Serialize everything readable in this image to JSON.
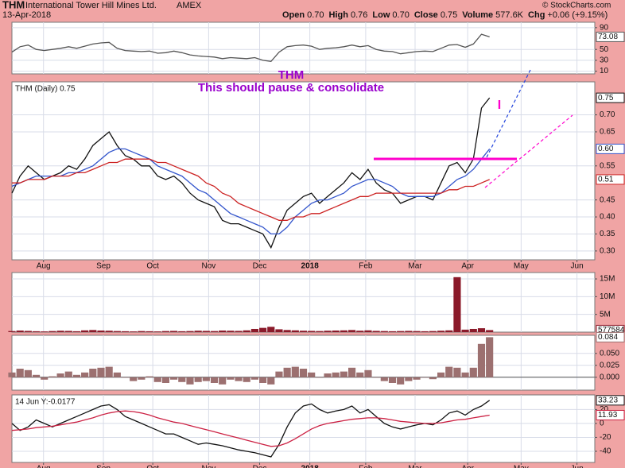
{
  "header": {
    "symbol": "THM",
    "name": "International Tower Hill Mines Ltd.",
    "exchange": "AMEX",
    "date": "13-Apr-2018",
    "quote": [
      [
        "Open",
        "0.70"
      ],
      [
        "High",
        "0.76"
      ],
      [
        "Low",
        "0.70"
      ],
      [
        "Close",
        "0.75"
      ],
      [
        "Volume",
        "577.6K"
      ],
      [
        "Chg",
        "+0.06 (+9.15%)"
      ]
    ],
    "source": "© StockCharts.com"
  },
  "chart_data": [
    {
      "type": "line",
      "xlim": [
        0,
        72
      ],
      "ylim": [
        5,
        100
      ],
      "yticks": [
        10,
        30,
        50,
        90
      ],
      "grid": true,
      "series": [
        {
          "name": "RSI",
          "color": "#555555",
          "last_label": "73.08",
          "values": [
            45,
            55,
            58,
            50,
            48,
            50,
            52,
            55,
            52,
            56,
            60,
            62,
            63,
            52,
            48,
            47,
            46,
            47,
            43,
            44,
            47,
            44,
            40,
            38,
            37,
            36,
            33,
            35,
            34,
            33,
            35,
            30,
            28,
            45,
            55,
            57,
            58,
            56,
            50,
            52,
            53,
            55,
            58,
            55,
            57,
            50,
            47,
            46,
            42,
            44,
            46,
            47,
            46,
            52,
            58,
            59,
            54,
            60,
            78,
            73.08
          ]
        }
      ]
    },
    {
      "type": "line",
      "label": "THM (Daily) 0.75",
      "xlim": [
        0,
        72
      ],
      "ylim": [
        0.274,
        0.797
      ],
      "grid": true,
      "annotations": [
        "THM",
        "This should pause & consolidate",
        "I"
      ],
      "xticks": [
        {
          "value": 3.9,
          "label": "Aug"
        },
        {
          "value": 11.3,
          "label": "Sep"
        },
        {
          "value": 17.4,
          "label": "Oct"
        },
        {
          "value": 24.3,
          "label": "Nov"
        },
        {
          "value": 30.6,
          "label": "Dec"
        },
        {
          "value": 36.8,
          "label": "2018"
        },
        {
          "value": 43.7,
          "label": "Feb"
        },
        {
          "value": 49.8,
          "label": "Mar"
        },
        {
          "value": 56.3,
          "label": "Apr"
        },
        {
          "value": 62.9,
          "label": "May"
        },
        {
          "value": 69.8,
          "label": "Jun"
        }
      ],
      "yticks": [
        {
          "value": 0.3,
          "label": "0.30"
        },
        {
          "value": 0.35,
          "label": "0.35"
        },
        {
          "value": 0.4,
          "label": "0.40"
        },
        {
          "value": 0.45,
          "label": "0.45"
        },
        {
          "value": 0.55,
          "label": "0.55"
        },
        {
          "value": 0.65,
          "label": "0.65"
        },
        {
          "value": 0.7,
          "label": "0.70"
        }
      ],
      "series": [
        {
          "name": "THM",
          "color": "#111111",
          "last_label": "0.75",
          "values": [
            0.47,
            0.52,
            0.55,
            0.53,
            0.51,
            0.52,
            0.53,
            0.55,
            0.54,
            0.57,
            0.61,
            0.63,
            0.65,
            0.61,
            0.58,
            0.57,
            0.55,
            0.55,
            0.52,
            0.51,
            0.52,
            0.5,
            0.47,
            0.45,
            0.44,
            0.43,
            0.39,
            0.38,
            0.38,
            0.37,
            0.36,
            0.35,
            0.31,
            0.37,
            0.42,
            0.44,
            0.46,
            0.47,
            0.44,
            0.46,
            0.48,
            0.5,
            0.53,
            0.51,
            0.54,
            0.5,
            0.48,
            0.47,
            0.44,
            0.45,
            0.46,
            0.46,
            0.45,
            0.5,
            0.55,
            0.56,
            0.53,
            0.57,
            0.72,
            0.75
          ]
        },
        {
          "name": "MA20",
          "color": "#3355cc",
          "last_label": "0.60",
          "values": [
            0.49,
            0.5,
            0.51,
            0.52,
            0.52,
            0.52,
            0.52,
            0.53,
            0.53,
            0.54,
            0.55,
            0.57,
            0.59,
            0.6,
            0.6,
            0.59,
            0.58,
            0.57,
            0.55,
            0.54,
            0.53,
            0.52,
            0.5,
            0.48,
            0.47,
            0.45,
            0.43,
            0.41,
            0.4,
            0.39,
            0.38,
            0.37,
            0.35,
            0.35,
            0.37,
            0.4,
            0.42,
            0.44,
            0.45,
            0.45,
            0.46,
            0.47,
            0.49,
            0.5,
            0.51,
            0.51,
            0.5,
            0.49,
            0.47,
            0.46,
            0.46,
            0.46,
            0.46,
            0.47,
            0.49,
            0.51,
            0.52,
            0.54,
            0.57,
            0.6
          ]
        },
        {
          "name": "MA50",
          "color": "#cc2222",
          "last_label": "0.51",
          "values": [
            0.5,
            0.5,
            0.51,
            0.51,
            0.51,
            0.52,
            0.52,
            0.52,
            0.53,
            0.53,
            0.54,
            0.55,
            0.56,
            0.56,
            0.57,
            0.57,
            0.57,
            0.57,
            0.56,
            0.56,
            0.55,
            0.54,
            0.53,
            0.52,
            0.5,
            0.49,
            0.47,
            0.46,
            0.44,
            0.43,
            0.42,
            0.41,
            0.4,
            0.39,
            0.39,
            0.4,
            0.4,
            0.41,
            0.41,
            0.42,
            0.43,
            0.44,
            0.45,
            0.46,
            0.46,
            0.47,
            0.47,
            0.47,
            0.47,
            0.47,
            0.47,
            0.47,
            0.47,
            0.47,
            0.48,
            0.48,
            0.49,
            0.49,
            0.5,
            0.51
          ]
        }
      ]
    },
    {
      "type": "bar",
      "xlim": [
        0,
        72
      ],
      "ylim": [
        0,
        16800000
      ],
      "grid": true,
      "yticks": [
        {
          "value": 5000000,
          "label": "5M"
        },
        {
          "value": 10000000,
          "label": "10M"
        },
        {
          "value": 15000000,
          "label": "15M"
        }
      ],
      "series": [
        {
          "name": "Volume",
          "color": "#8b1a2a",
          "last_label": "577584",
          "values": [
            300000,
            450000,
            350000,
            250000,
            200000,
            300000,
            400000,
            350000,
            250000,
            500000,
            600000,
            450000,
            400000,
            300000,
            250000,
            200000,
            300000,
            250000,
            200000,
            300000,
            350000,
            250000,
            300000,
            400000,
            350000,
            300000,
            450000,
            400000,
            350000,
            500000,
            900000,
            1200000,
            1500000,
            800000,
            600000,
            500000,
            400000,
            350000,
            300000,
            400000,
            450000,
            500000,
            600000,
            400000,
            500000,
            350000,
            300000,
            250000,
            300000,
            350000,
            300000,
            250000,
            300000,
            400000,
            500000,
            15500000,
            700000,
            900000,
            1100000,
            577584
          ]
        }
      ]
    },
    {
      "type": "bar",
      "xlim": [
        0,
        72
      ],
      "ylim": [
        -0.027,
        0.088
      ],
      "grid": true,
      "yticks": [
        {
          "value": 0,
          "label": "0.000"
        },
        {
          "value": 0.025,
          "label": "0.025"
        },
        {
          "value": 0.05,
          "label": "0.050"
        }
      ],
      "series": [
        {
          "name": "Histogram",
          "color": "#9c7070",
          "last_label": "0.084",
          "values": [
            0.01,
            0.018,
            0.015,
            0.005,
            -0.005,
            0.002,
            0.008,
            0.012,
            0.005,
            0.01,
            0.018,
            0.02,
            0.022,
            0.01,
            0,
            -0.008,
            -0.005,
            0.002,
            -0.01,
            -0.012,
            -0.005,
            -0.01,
            -0.015,
            -0.01,
            -0.008,
            -0.012,
            -0.015,
            -0.005,
            -0.008,
            -0.01,
            -0.005,
            -0.012,
            -0.015,
            0.012,
            0.02,
            0.022,
            0.018,
            0.01,
            0,
            0.008,
            0.01,
            0.012,
            0.02,
            0.01,
            0.015,
            0,
            -0.008,
            -0.012,
            -0.015,
            -0.008,
            -0.005,
            0,
            -0.004,
            0.01,
            0.022,
            0.02,
            0.01,
            0.02,
            0.07,
            0.084
          ]
        }
      ]
    },
    {
      "type": "line",
      "label": "14 Jun Y:-0.0177",
      "xlim": [
        0,
        72
      ],
      "ylim": [
        -56,
        41
      ],
      "grid": true,
      "xticks": [
        {
          "value": 3.9,
          "label": "Aug"
        },
        {
          "value": 11.3,
          "label": "Sep"
        },
        {
          "value": 17.4,
          "label": "Oct"
        },
        {
          "value": 24.3,
          "label": "Nov"
        },
        {
          "value": 30.6,
          "label": "Dec"
        },
        {
          "value": 36.8,
          "label": "2018"
        },
        {
          "value": 43.7,
          "label": "Feb"
        },
        {
          "value": 49.8,
          "label": "Mar"
        },
        {
          "value": 56.3,
          "label": "Apr"
        },
        {
          "value": 62.9,
          "label": "May"
        },
        {
          "value": 69.8,
          "label": "Jun"
        }
      ],
      "yticks": [
        -40,
        -20,
        0,
        20
      ],
      "series": [
        {
          "name": "Oscillator",
          "color": "#111111",
          "last_label": "33.23",
          "values": [
            0,
            -10,
            -5,
            5,
            0,
            -5,
            0,
            5,
            10,
            15,
            20,
            25,
            27,
            20,
            10,
            5,
            0,
            -5,
            -10,
            -15,
            -15,
            -20,
            -25,
            -30,
            -28,
            -30,
            -32,
            -35,
            -38,
            -40,
            -42,
            -45,
            -48,
            -30,
            -5,
            15,
            25,
            28,
            20,
            15,
            18,
            20,
            25,
            15,
            20,
            10,
            0,
            -5,
            -8,
            -5,
            -2,
            0,
            -2,
            5,
            15,
            18,
            12,
            20,
            25,
            33.23
          ]
        },
        {
          "name": "Signal",
          "color": "#cc2244",
          "last_label": "11.93",
          "values": [
            -10,
            -9,
            -8,
            -6,
            -5,
            -4,
            -2,
            0,
            2,
            5,
            8,
            12,
            15,
            17,
            18,
            17,
            15,
            12,
            8,
            5,
            2,
            0,
            -3,
            -6,
            -9,
            -12,
            -15,
            -18,
            -21,
            -24,
            -27,
            -30,
            -33,
            -32,
            -28,
            -22,
            -15,
            -8,
            -3,
            0,
            2,
            4,
            6,
            7,
            8,
            8,
            7,
            5,
            3,
            2,
            1,
            0,
            0,
            1,
            3,
            5,
            6,
            8,
            10,
            11.93
          ]
        }
      ]
    }
  ]
}
